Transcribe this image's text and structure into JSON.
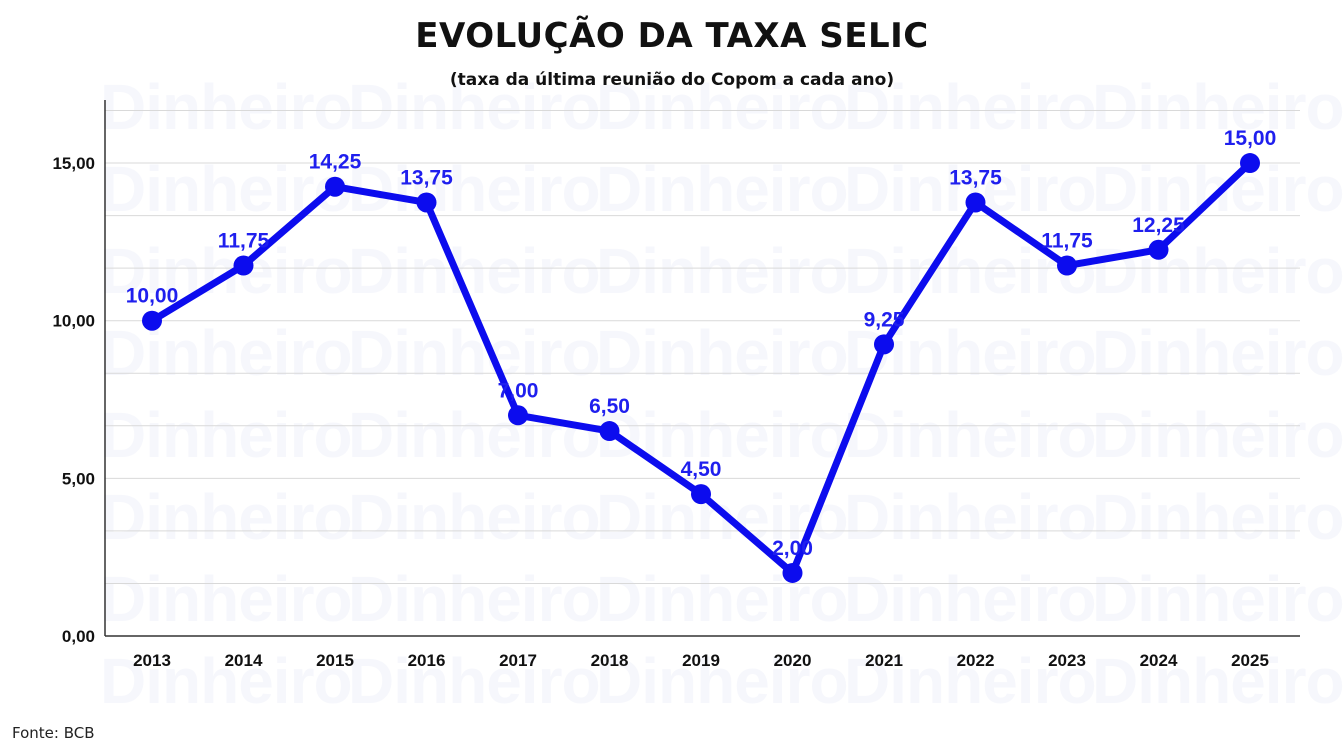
{
  "title": "EVOLUÇÃO DA TAXA SELIC",
  "subtitle": "(taxa da última reunião do Copom a cada ano)",
  "source": "Fonte: BCB",
  "watermark": "Dinheiro",
  "colors": {
    "line": "#0c0cee",
    "label": "#1f1fee",
    "grid": "#d9d9d9",
    "axis": "#333333"
  },
  "chart_data": {
    "type": "line",
    "categories": [
      "2013",
      "2014",
      "2015",
      "2016",
      "2017",
      "2018",
      "2019",
      "2020",
      "2021",
      "2022",
      "2023",
      "2024",
      "2025"
    ],
    "values": [
      10.0,
      11.75,
      14.25,
      13.75,
      7.0,
      6.5,
      4.5,
      2.0,
      9.25,
      13.75,
      11.75,
      12.25,
      15.0
    ],
    "value_labels": [
      "10,00",
      "11,75",
      "14,25",
      "13,75",
      "7,00",
      "6,50",
      "4,50",
      "2,00",
      "9,25",
      "13,75",
      "11,75",
      "12,25",
      "15,00"
    ],
    "yticks": [
      0,
      5,
      10,
      15
    ],
    "ytick_labels": [
      "0,00",
      "5,00",
      "10,00",
      "15,00"
    ],
    "ylim": [
      0,
      17
    ],
    "grid": true,
    "legend": "none"
  }
}
